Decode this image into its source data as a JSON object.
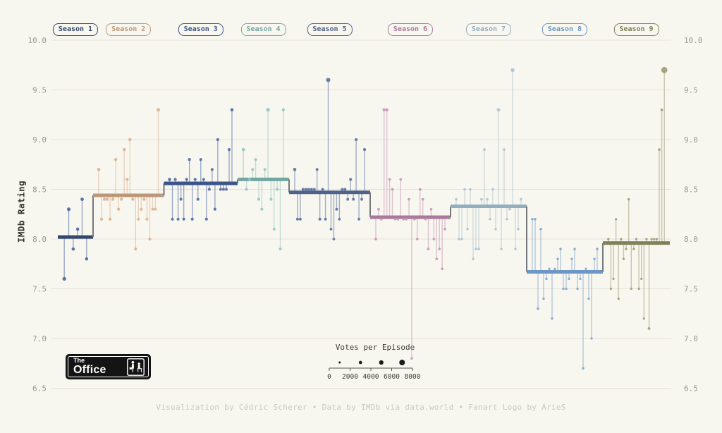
{
  "legend": {
    "title": "Votes per Episode",
    "axis_ticks": [
      0,
      2000,
      4000,
      6000,
      8000
    ],
    "dot_votes": [
      1000,
      3000,
      5000,
      7000
    ],
    "dot_color": "#1b1b1b"
  },
  "logo": {
    "top": "The",
    "bottom": "Office"
  },
  "footer": {
    "text": "Visualization by Cédric Scherer  •  Data by IMDb via data.world  •  Fanart Logo by ArieS"
  },
  "colors": {
    "background": "#f8f7ef",
    "gridline": "#e4e2d8",
    "tick_label": "#9b9a8e",
    "axis_title": "#33332e",
    "footer_text": "#c9c8ba",
    "step_connector": "#76797b",
    "logo_bg": "#141414",
    "logo_fg": "#ffffff"
  },
  "chart_data": {
    "type": "scatter",
    "variant": "lollipop points around a per-season mean step line; dot size encodes votes per episode",
    "ylabel": "IMDb Rating",
    "ylim": [
      6.5,
      10.0
    ],
    "yticks": [
      10.0,
      9.5,
      9.0,
      8.5,
      8.0,
      7.5,
      7.0,
      6.5
    ],
    "grid": true,
    "legend_position": "bottom-center",
    "seasons": [
      {
        "name": "Season 1",
        "mean": 8.02,
        "point_color": "#4a66a3",
        "line_color": "#34476f",
        "ratings": [
          7.6,
          8.3,
          7.9,
          8.1,
          8.4,
          7.8
        ],
        "votes": [
          3706,
          3566,
          2983,
          2886,
          3179,
          2852
        ]
      },
      {
        "name": "Season 2",
        "mean": 8.44,
        "point_color": "#dcb291",
        "line_color": "#bb977a",
        "ratings": [
          8.7,
          8.2,
          8.4,
          8.4,
          8.2,
          8.4,
          8.8,
          8.3,
          8.4,
          8.9,
          8.6,
          9.0,
          8.4,
          7.9,
          8.2,
          8.3,
          8.4,
          8.2,
          8.0,
          8.3,
          8.3,
          9.3
        ],
        "votes": [
          3213,
          2736,
          2742,
          2713,
          2561,
          2676,
          2868,
          2551,
          2527,
          2881,
          2658,
          3070,
          2549,
          2597,
          2382,
          2462,
          2454,
          2341,
          2312,
          2389,
          2344,
          3644
        ]
      },
      {
        "name": "Season 3",
        "mean": 8.56,
        "point_color": "#4d6aa6",
        "line_color": "#3c5488",
        "ratings": [
          8.6,
          8.2,
          8.6,
          8.2,
          8.4,
          8.2,
          8.6,
          8.8,
          8.2,
          8.6,
          8.4,
          8.8,
          8.6,
          8.2,
          8.5,
          8.7,
          8.3,
          9.0,
          8.5,
          8.5,
          8.5,
          8.9,
          9.3
        ],
        "votes": [
          2960,
          2433,
          2514,
          2405,
          2333,
          2319,
          2409,
          2535,
          2315,
          2491,
          2264,
          2410,
          2335,
          2285,
          2306,
          2384,
          2222,
          2561,
          2255,
          2240,
          2222,
          2424,
          2912
        ]
      },
      {
        "name": "Season 4",
        "mean": 8.6,
        "point_color": "#93c7c1",
        "line_color": "#72a6a1",
        "ratings": [
          8.9,
          8.5,
          8.6,
          8.7,
          8.8,
          8.4,
          8.3,
          8.7,
          9.3,
          8.4,
          8.1,
          8.5,
          7.9,
          9.3
        ],
        "votes": [
          2994,
          2360,
          2340,
          2438,
          2331,
          2266,
          2264,
          2329,
          3854,
          2180,
          2184,
          2096,
          2095,
          2759
        ]
      },
      {
        "name": "Season 5",
        "mean": 8.47,
        "point_color": "#58719f",
        "line_color": "#50628a",
        "ratings": [
          8.7,
          8.2,
          8.2,
          8.5,
          8.5,
          8.5,
          8.5,
          8.5,
          8.7,
          8.2,
          8.5,
          8.2,
          9.6,
          8.1,
          8.0,
          8.3,
          8.2,
          8.5,
          8.5,
          8.4,
          8.6,
          8.4,
          9.0,
          8.2,
          8.4,
          8.9
        ],
        "votes": [
          2948,
          2205,
          2146,
          2225,
          2205,
          2281,
          2264,
          2257,
          2371,
          2313,
          2280,
          2087,
          4722,
          1999,
          1960,
          2062,
          2006,
          2136,
          2202,
          2097,
          2310,
          2056,
          2317,
          2012,
          2060,
          2279
        ]
      },
      {
        "name": "Season 6",
        "mean": 8.22,
        "point_color": "#c795b8",
        "line_color": "#a7799c",
        "ratings": [
          8.0,
          8.3,
          8.2,
          9.3,
          9.3,
          8.6,
          8.5,
          8.2,
          8.2,
          8.6,
          8.2,
          8.2,
          8.4,
          6.8,
          8.2,
          8.0,
          8.5,
          8.4,
          8.2,
          7.9,
          8.3,
          8.0,
          7.8,
          7.9,
          7.7,
          8.1
        ],
        "votes": [
          2077,
          1958,
          1931,
          2671,
          2671,
          1881,
          1905,
          1825,
          1922,
          1811,
          1982,
          1921,
          1843,
          1723,
          1797,
          1784,
          2026,
          1917,
          1817,
          1773,
          1736,
          1693,
          1716,
          1737,
          1709,
          1902
        ]
      },
      {
        "name": "Season 7",
        "mean": 8.33,
        "point_color": "#abc2cf",
        "line_color": "#93aebf",
        "ratings": [
          8.4,
          8.0,
          8.0,
          8.5,
          8.1,
          8.5,
          7.8,
          7.9,
          7.9,
          8.4,
          8.9,
          8.4,
          8.2,
          8.5,
          8.1,
          9.3,
          7.9,
          8.9,
          8.2,
          8.3,
          9.7,
          7.9,
          8.1,
          8.4
        ],
        "votes": [
          1701,
          1691,
          1605,
          1628,
          1743,
          1676,
          1588,
          1655,
          1633,
          1866,
          1982,
          1735,
          1592,
          1610,
          1606,
          3216,
          1600,
          1799,
          1549,
          1661,
          3907,
          1541,
          1546,
          1707
        ]
      },
      {
        "name": "Season 8",
        "mean": 7.67,
        "point_color": "#7ba3cd",
        "line_color": "#6d96c5",
        "ratings": [
          8.2,
          8.2,
          7.3,
          8.1,
          7.4,
          7.6,
          7.7,
          7.2,
          7.7,
          7.8,
          7.9,
          7.5,
          7.5,
          7.6,
          7.8,
          7.9,
          7.5,
          7.6,
          6.7,
          7.7,
          7.4,
          7.0,
          7.8,
          7.9
        ],
        "votes": [
          1610,
          1458,
          1801,
          1565,
          1413,
          1448,
          1343,
          1401,
          1410,
          1413,
          1518,
          1383,
          1394,
          1341,
          1329,
          1449,
          1342,
          1331,
          1566,
          1305,
          1361,
          1334,
          1397,
          1442
        ]
      },
      {
        "name": "Season 9",
        "mean": 7.96,
        "point_color": "#9b9c76",
        "line_color": "#7f815a",
        "ratings": [
          8.0,
          7.5,
          7.6,
          8.2,
          7.4,
          8.0,
          7.8,
          7.9,
          8.4,
          7.5,
          7.9,
          8.0,
          7.5,
          7.6,
          7.2,
          8.0,
          7.1,
          8.0,
          8.0,
          8.0,
          8.9,
          9.3,
          9.7
        ],
        "votes": [
          1482,
          1296,
          1269,
          1409,
          1375,
          1322,
          1344,
          1348,
          1549,
          1281,
          1378,
          1315,
          1260,
          1303,
          1277,
          1341,
          1952,
          1270,
          1240,
          1302,
          1722,
          1914,
          7934
        ]
      }
    ]
  }
}
